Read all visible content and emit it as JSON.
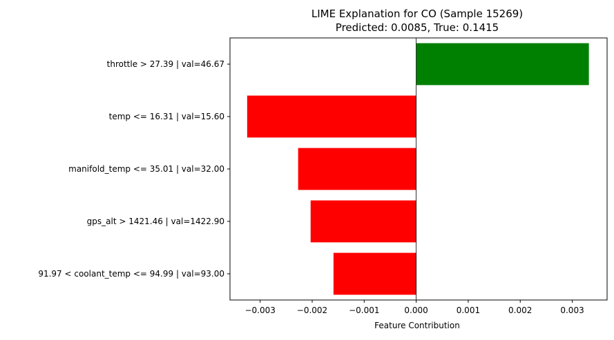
{
  "chart_data": {
    "type": "bar",
    "orientation": "horizontal",
    "title_line1": "LIME Explanation for CO (Sample 15269)",
    "title_line2": "Predicted: 0.0085, True: 0.1415",
    "xlabel": "Feature Contribution",
    "ylabel": "",
    "xlim": [
      -0.00358,
      0.00367
    ],
    "xticks": [
      -0.003,
      -0.002,
      -0.001,
      0.0,
      0.001,
      0.002,
      0.003
    ],
    "xtick_labels": [
      "−0.003",
      "−0.002",
      "−0.001",
      "0.000",
      "0.001",
      "0.002",
      "0.003"
    ],
    "grid": false,
    "legend": "none",
    "colors": {
      "positive": "#008000",
      "negative": "#ff0000",
      "zero_line": "#000000"
    },
    "categories": [
      "throttle > 27.39 | val=46.67",
      "temp <= 16.31 | val=15.60",
      "manifold_temp <= 35.01 | val=32.00",
      "gps_alt > 1421.46 | val=1422.90",
      "91.97 < coolant_temp <= 94.99 | val=93.00"
    ],
    "values": [
      0.00332,
      -0.00325,
      -0.00227,
      -0.00203,
      -0.00159
    ]
  }
}
